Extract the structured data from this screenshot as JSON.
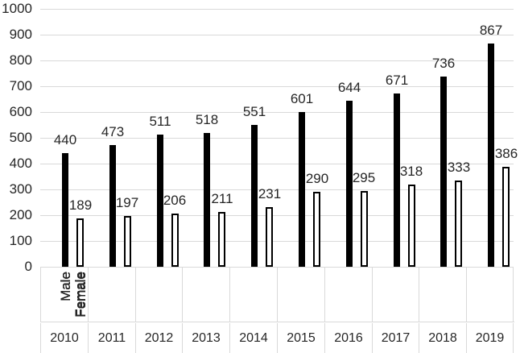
{
  "chart_data": {
    "type": "bar",
    "title": "",
    "categories": [
      "2010",
      "2011",
      "2012",
      "2013",
      "2014",
      "2015",
      "2016",
      "2017",
      "2018",
      "2019"
    ],
    "sub_categories": [
      "Male",
      "Female"
    ],
    "series": [
      {
        "name": "Male",
        "values": [
          440,
          473,
          511,
          518,
          551,
          601,
          644,
          671,
          736,
          867
        ],
        "fill": "#000000",
        "border": "#000000"
      },
      {
        "name": "Female",
        "values": [
          189,
          197,
          206,
          211,
          231,
          290,
          295,
          318,
          333,
          386
        ],
        "fill": "#ffffff",
        "border": "#000000"
      }
    ],
    "y_ticks": [
      0,
      100,
      200,
      300,
      400,
      500,
      600,
      700,
      800,
      900,
      1000
    ],
    "ylim": [
      0,
      1000
    ],
    "ytick_step": 100,
    "grid": true,
    "legend": "none",
    "data_labels": true
  },
  "colors": {
    "gridline": "#d9d9d9",
    "cell_border": "#d9d9d9",
    "text": "#262626",
    "background": "#ffffff"
  }
}
